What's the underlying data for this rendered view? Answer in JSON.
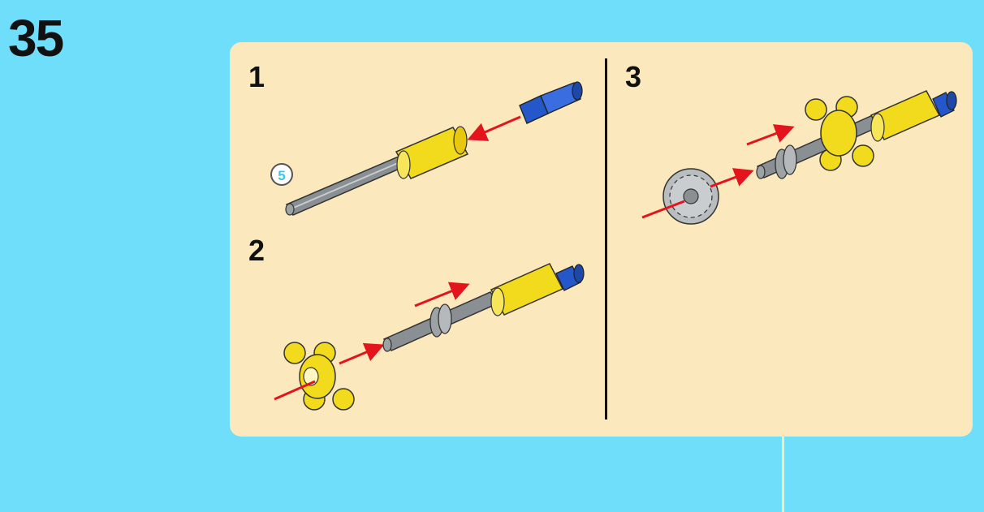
{
  "page": {
    "number": "35"
  },
  "steps": [
    {
      "number": "1",
      "length_label": "5"
    },
    {
      "number": "2"
    },
    {
      "number": "3"
    }
  ],
  "colors": {
    "background": "#6fdefa",
    "panel": "#fbe9bd",
    "axle": "#8a8f93",
    "bush_yellow": "#f2da1c",
    "pin_blue": "#2457c9",
    "arrow": "#e3141b",
    "gear": "#b9bdbf"
  }
}
